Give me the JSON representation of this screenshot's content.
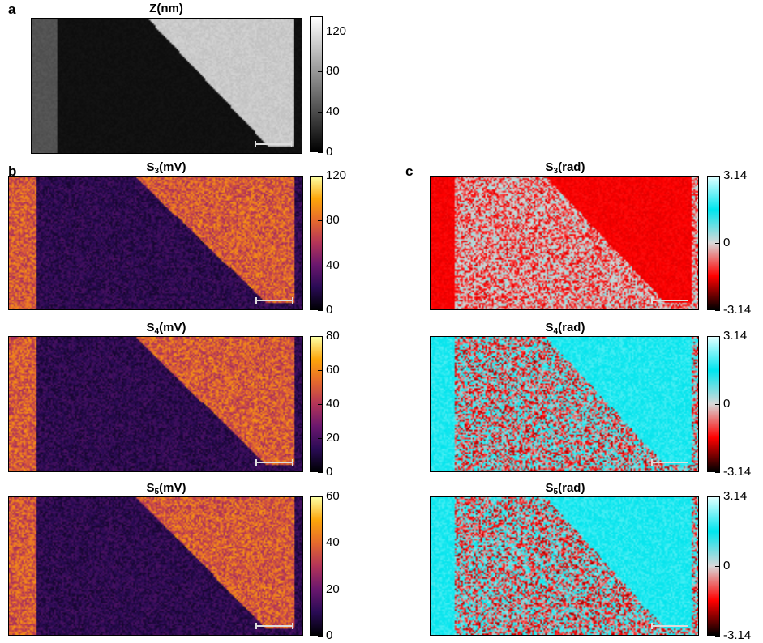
{
  "panel_letters": {
    "a": "a",
    "b": "b",
    "c": "c"
  },
  "colormaps": {
    "gray": [
      "#000000",
      "#ffffff"
    ],
    "inferno": [
      "#000004",
      "#2a0b55",
      "#6a176e",
      "#b33458",
      "#e5692d",
      "#fca50a",
      "#fcffa4"
    ],
    "phase": [
      "#000000",
      "#ff0000",
      "#d8d8d8",
      "#00e5ee",
      "#e0ffff"
    ]
  },
  "maps": [
    {
      "id": "z",
      "title": "Z(nm)",
      "title_base": "Z",
      "title_sub": "",
      "title_unit": "(nm)",
      "cmap": "gray",
      "ticks": [
        "0",
        "40",
        "80",
        "120"
      ],
      "range": [
        0,
        135
      ]
    },
    {
      "id": "s3-amp",
      "title_base": "S",
      "title_sub": "3",
      "title_unit": "(mV)",
      "cmap": "inferno",
      "ticks": [
        "0",
        "40",
        "80",
        "120"
      ],
      "range": [
        0,
        120
      ]
    },
    {
      "id": "s4-amp",
      "title_base": "S",
      "title_sub": "4",
      "title_unit": "(mV)",
      "cmap": "inferno",
      "ticks": [
        "0",
        "20",
        "40",
        "60",
        "80"
      ],
      "range": [
        0,
        80
      ]
    },
    {
      "id": "s5-amp",
      "title_base": "S",
      "title_sub": "5",
      "title_unit": "(mV)",
      "cmap": "inferno",
      "ticks": [
        "0",
        "20",
        "40",
        "60"
      ],
      "range": [
        0,
        60
      ]
    },
    {
      "id": "s3-phase",
      "title_base": "S",
      "title_sub": "3",
      "title_unit": "(rad)",
      "cmap": "phase",
      "ticks": [
        "-3.14",
        "0",
        "3.14"
      ],
      "range": [
        -3.14,
        3.14
      ]
    },
    {
      "id": "s4-phase",
      "title_base": "S",
      "title_sub": "4",
      "title_unit": "(rad)",
      "cmap": "phase",
      "ticks": [
        "-3.14",
        "0",
        "3.14"
      ],
      "range": [
        -3.14,
        3.14
      ]
    },
    {
      "id": "s5-phase",
      "title_base": "S",
      "title_sub": "5",
      "title_unit": "(rad)",
      "cmap": "phase",
      "ticks": [
        "-3.14",
        "0",
        "3.14"
      ],
      "range": [
        -3.14,
        3.14
      ]
    }
  ]
}
